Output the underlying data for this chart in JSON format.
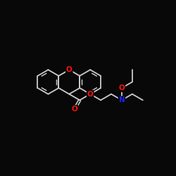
{
  "background": "#080808",
  "bc": "#cccccc",
  "OC": "#ff1111",
  "NC": "#2222ff",
  "lw": 1.3,
  "fs": 7.5,
  "BL": 1.0,
  "figsize": [
    2.5,
    2.5
  ],
  "dpi": 100,
  "xlim": [
    -1.5,
    13.0
  ],
  "ylim": [
    1.5,
    9.5
  ]
}
